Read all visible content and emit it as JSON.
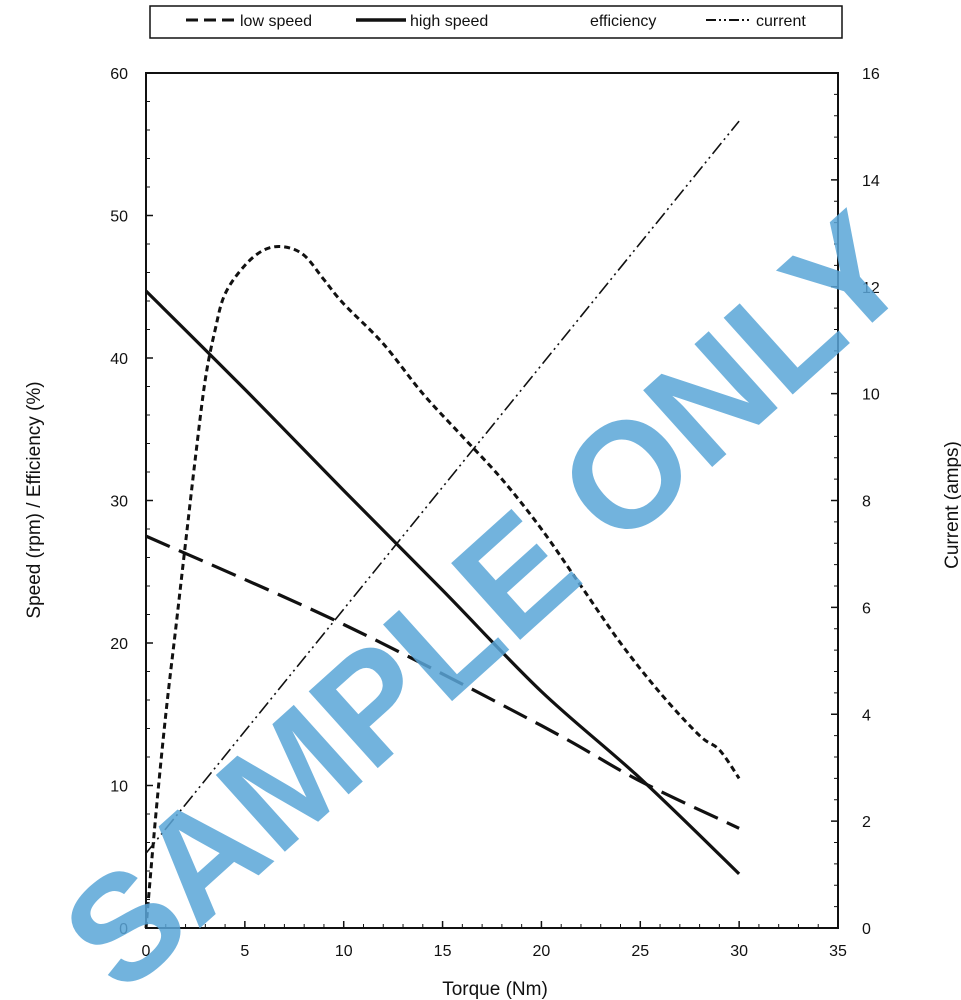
{
  "chart_data": {
    "type": "line",
    "x": {
      "label": "Torque (Nm)",
      "range": [
        0,
        35
      ],
      "ticks": [
        0,
        5,
        10,
        15,
        20,
        25,
        30,
        35
      ],
      "tick_labels": [
        "0",
        "5",
        "10",
        "15",
        "20",
        "25",
        "30",
        "35"
      ]
    },
    "y_left": {
      "label": "Speed (rpm) / Efficiency (%)",
      "range": [
        0,
        60
      ],
      "ticks": [
        0,
        10,
        20,
        30,
        40,
        50,
        60
      ],
      "tick_labels": [
        "0",
        "10",
        "20",
        "30",
        "40",
        "50",
        "60"
      ]
    },
    "y_right": {
      "label": "Current (amps)",
      "range": [
        0,
        16
      ],
      "ticks": [
        0,
        2,
        4,
        6,
        8,
        10,
        12,
        14,
        16
      ],
      "tick_labels": [
        "0",
        "2",
        "4",
        "6",
        "8",
        "10",
        "12",
        "14",
        "16"
      ]
    },
    "legend": {
      "placement": "top",
      "entries": [
        "low speed",
        "high speed",
        "efficiency",
        "current"
      ]
    },
    "series": [
      {
        "name": "low speed",
        "axis": "left",
        "style": "long-dash",
        "points": [
          [
            0,
            27.5
          ],
          [
            10,
            21.3
          ],
          [
            20,
            14.2
          ],
          [
            25,
            10.3
          ],
          [
            30,
            7.0
          ]
        ]
      },
      {
        "name": "high speed",
        "axis": "left",
        "style": "solid",
        "points": [
          [
            0,
            44.7
          ],
          [
            5,
            37.8
          ],
          [
            10,
            30.7
          ],
          [
            15,
            23.7
          ],
          [
            20,
            16.6
          ],
          [
            25,
            10.5
          ],
          [
            30,
            3.8
          ]
        ]
      },
      {
        "name": "efficiency",
        "axis": "left",
        "style": "short-dash",
        "points": [
          [
            0,
            0
          ],
          [
            0.5,
            8
          ],
          [
            1,
            15
          ],
          [
            1.5,
            21
          ],
          [
            2,
            27
          ],
          [
            2.5,
            33
          ],
          [
            3,
            38.5
          ],
          [
            3.5,
            42
          ],
          [
            4,
            44.5
          ],
          [
            5,
            46.5
          ],
          [
            6,
            47.6
          ],
          [
            7,
            47.8
          ],
          [
            8,
            47.2
          ],
          [
            9,
            45.5
          ],
          [
            10,
            43.8
          ],
          [
            12,
            41
          ],
          [
            14,
            37.5
          ],
          [
            16,
            34.5
          ],
          [
            18,
            31.5
          ],
          [
            20,
            28
          ],
          [
            22,
            24
          ],
          [
            24,
            20
          ],
          [
            26,
            16.5
          ],
          [
            28,
            13.5
          ],
          [
            29,
            12.5
          ],
          [
            30,
            10.5
          ]
        ]
      },
      {
        "name": "current",
        "axis": "right",
        "style": "dash-dot-dot",
        "points": [
          [
            0,
            1.4
          ],
          [
            30,
            15.1
          ]
        ]
      }
    ]
  },
  "watermark_text": "SAMPLE ONLY"
}
